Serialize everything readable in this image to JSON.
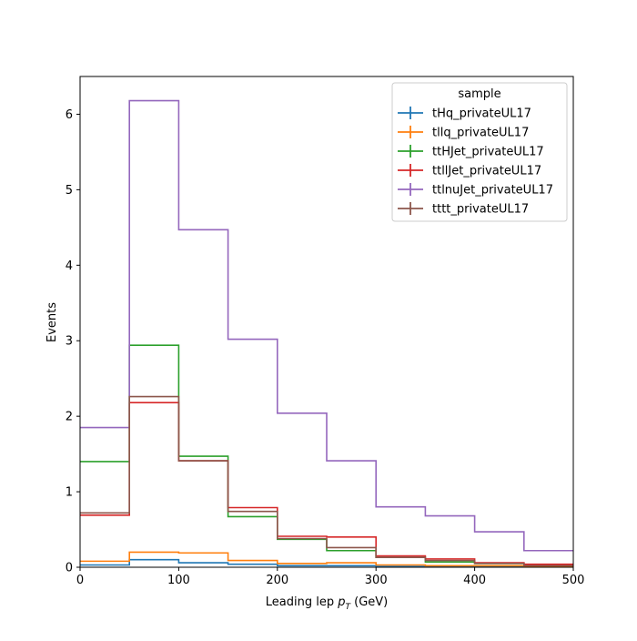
{
  "chart_data": {
    "type": "line",
    "style": "step-histogram",
    "title": "",
    "xlabel": "Leading lep",
    "xlabel_math": "p",
    "xlabel_sub": "T",
    "xlabel_unit": "(GeV)",
    "ylabel": "Events",
    "xlim": [
      0,
      500
    ],
    "ylim": [
      0,
      6.5
    ],
    "xticks": [
      0,
      100,
      200,
      300,
      400,
      500
    ],
    "yticks": [
      0,
      1,
      2,
      3,
      4,
      5,
      6
    ],
    "grid": false,
    "legend": {
      "title": "sample",
      "placement": "top-right"
    },
    "bin_edges": [
      0,
      50,
      100,
      150,
      200,
      250,
      300,
      350,
      400,
      450,
      500
    ],
    "series": [
      {
        "name": "tHq_privateUL17",
        "color": "#1f77b4",
        "values": [
          0.03,
          0.1,
          0.06,
          0.04,
          0.02,
          0.02,
          0.01,
          0.005,
          0.005,
          0.003
        ]
      },
      {
        "name": "tllq_privateUL17",
        "color": "#ff7f0e",
        "values": [
          0.08,
          0.2,
          0.19,
          0.09,
          0.05,
          0.06,
          0.03,
          0.02,
          0.02,
          0.01
        ]
      },
      {
        "name": "ttHJet_privateUL17",
        "color": "#2ca02c",
        "values": [
          1.4,
          2.94,
          1.47,
          0.67,
          0.37,
          0.22,
          0.13,
          0.07,
          0.05,
          0.03
        ]
      },
      {
        "name": "ttllJet_privateUL17",
        "color": "#d62728",
        "values": [
          0.69,
          2.18,
          1.41,
          0.79,
          0.41,
          0.4,
          0.15,
          0.11,
          0.06,
          0.04
        ]
      },
      {
        "name": "ttlnuJet_privateUL17",
        "color": "#9467bd",
        "values": [
          1.85,
          6.18,
          4.47,
          3.02,
          2.04,
          1.41,
          0.8,
          0.68,
          0.47,
          0.22
        ]
      },
      {
        "name": "tttt_privateUL17",
        "color": "#8c564b",
        "values": [
          0.72,
          2.26,
          1.41,
          0.74,
          0.38,
          0.26,
          0.13,
          0.09,
          0.05,
          0.02
        ]
      }
    ]
  }
}
